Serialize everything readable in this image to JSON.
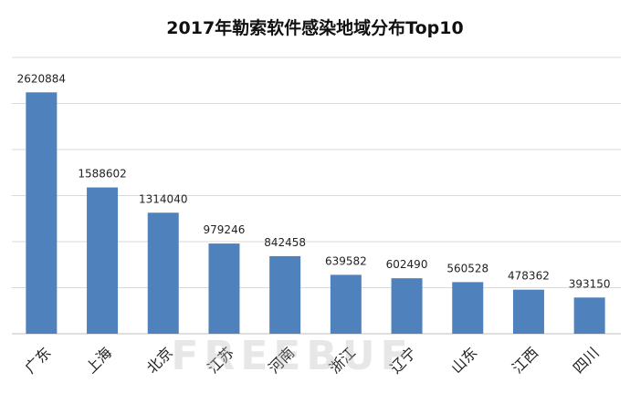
{
  "chart_data": {
    "type": "bar",
    "title": "2017年勒索软件感染地域分布Top10",
    "categories": [
      "广东",
      "上海",
      "北京",
      "江苏",
      "河南",
      "浙江",
      "辽宁",
      "山东",
      "江西",
      "四川"
    ],
    "values": [
      2620884,
      1588602,
      1314040,
      979246,
      842458,
      639582,
      602490,
      560528,
      478362,
      393150
    ],
    "xlabel": "",
    "ylabel": "",
    "ylim": [
      0,
      3000000
    ],
    "ytick_step": 500000,
    "grid": true,
    "legend": "none",
    "bar_color": "#4F81BD",
    "grid_color": "#D9D9D9"
  },
  "watermark": "FREEBUF"
}
